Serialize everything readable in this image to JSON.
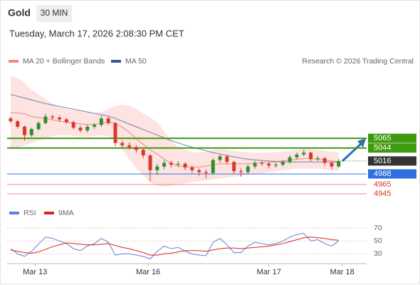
{
  "header": {
    "title": "Gold",
    "interval": "30 MIN",
    "datetime": "Tuesday, March 17, 2026 2:08:30 PM CET",
    "credit": "Research © 2026 Trading Central"
  },
  "chart_data": [
    {
      "type": "candlestick",
      "x": [
        0,
        1,
        2,
        3,
        4,
        5,
        6,
        7,
        8,
        9,
        10,
        11,
        12,
        13,
        14,
        15,
        16,
        17,
        18,
        19,
        20,
        21,
        22,
        23,
        24,
        25,
        26,
        27,
        28,
        29,
        30,
        31,
        32,
        33,
        34,
        35,
        36,
        37,
        38,
        39,
        40,
        41,
        42,
        43,
        44,
        45,
        46,
        47
      ],
      "xlim": [
        -0.5,
        51
      ],
      "ylim": [
        4925,
        5210
      ],
      "up_color": "#2f8f2f",
      "down_color": "#d9382b",
      "open": [
        5108,
        5102,
        5090,
        5072,
        5085,
        5098,
        5112,
        5110,
        5106,
        5100,
        5088,
        5082,
        5090,
        5094,
        5108,
        5098,
        5055,
        5050,
        5046,
        5040,
        5028,
        4996,
        5004,
        5012,
        5008,
        5010,
        5002,
        4996,
        4992,
        4990,
        5018,
        5026,
        5014,
        4994,
        4992,
        5004,
        5012,
        5010,
        5006,
        5008,
        5014,
        5024,
        5030,
        5034,
        5020,
        5022,
        5012,
        5004
      ],
      "high": [
        5112,
        5105,
        5093,
        5088,
        5102,
        5118,
        5116,
        5114,
        5109,
        5103,
        5092,
        5094,
        5098,
        5114,
        5112,
        5100,
        5060,
        5056,
        5050,
        5044,
        5031,
        5010,
        5018,
        5016,
        5015,
        5013,
        5006,
        5000,
        4998,
        5022,
        5030,
        5029,
        5016,
        5000,
        5008,
        5016,
        5016,
        5014,
        5012,
        5018,
        5028,
        5034,
        5040,
        5036,
        5027,
        5025,
        5015,
        5020
      ],
      "low": [
        5098,
        5086,
        5060,
        5068,
        5082,
        5095,
        5105,
        5101,
        5096,
        5084,
        5078,
        5078,
        5086,
        5090,
        5094,
        5048,
        5044,
        5041,
        5034,
        5022,
        4972,
        4986,
        4998,
        5002,
        5003,
        4996,
        4990,
        4984,
        4978,
        4986,
        5012,
        5008,
        4988,
        4982,
        4988,
        4999,
        5005,
        5000,
        5002,
        5004,
        5010,
        5020,
        5026,
        5015,
        5016,
        5006,
        4998,
        5001
      ],
      "close": [
        5102,
        5090,
        5072,
        5085,
        5098,
        5112,
        5110,
        5106,
        5100,
        5088,
        5082,
        5090,
        5094,
        5108,
        5098,
        5055,
        5050,
        5046,
        5040,
        5028,
        4996,
        5004,
        5012,
        5008,
        5010,
        5002,
        4996,
        4992,
        4990,
        5018,
        5026,
        5014,
        4994,
        4992,
        5004,
        5012,
        5010,
        5006,
        5008,
        5014,
        5024,
        5030,
        5034,
        5020,
        5022,
        5012,
        5004,
        5016
      ],
      "bands": {
        "name": "MA 20 + Bollinger Bands",
        "color": "#f4877f",
        "fill": "#fde3e1",
        "upper": [
          5200,
          5195,
          5185,
          5170,
          5160,
          5150,
          5140,
          5132,
          5128,
          5126,
          5124,
          5122,
          5120,
          5122,
          5128,
          5135,
          5138,
          5135,
          5128,
          5118,
          5110,
          5100,
          5080,
          5060,
          5045,
          5040,
          5036,
          5034,
          5036,
          5040,
          5042,
          5040,
          5038,
          5036,
          5035,
          5034,
          5034,
          5034,
          5035,
          5036,
          5038,
          5040,
          5042,
          5042,
          5040,
          5038,
          5036,
          5034
        ],
        "middle": [
          5120,
          5120,
          5118,
          5112,
          5110,
          5108,
          5105,
          5102,
          5100,
          5098,
          5096,
          5095,
          5095,
          5097,
          5099,
          5098,
          5089,
          5078,
          5064,
          5052,
          5040,
          5031,
          5020,
          5011,
          5005,
          5004,
          5003,
          5003,
          5005,
          5008,
          5010,
          5010,
          5010,
          5010,
          5010,
          5011,
          5012,
          5013,
          5014,
          5016,
          5018,
          5020,
          5021,
          5021,
          5020,
          5018,
          5016,
          5014
        ],
        "lower": [
          5040,
          5045,
          5050,
          5055,
          5060,
          5065,
          5070,
          5072,
          5072,
          5070,
          5068,
          5068,
          5070,
          5072,
          5070,
          5060,
          5040,
          5020,
          5000,
          4985,
          4970,
          4962,
          4960,
          4962,
          4965,
          4968,
          4970,
          4972,
          4974,
          4976,
          4978,
          4980,
          4982,
          4984,
          4986,
          4988,
          4990,
          4992,
          4994,
          4996,
          4998,
          5000,
          5000,
          5000,
          5000,
          4998,
          4996,
          4994
        ]
      },
      "series": [
        {
          "name": "MA 50",
          "color": "#3b5998",
          "values": [
            5160,
            5156,
            5152,
            5148,
            5144,
            5140,
            5137,
            5134,
            5131,
            5128,
            5125,
            5122,
            5119,
            5116,
            5113,
            5108,
            5102,
            5096,
            5090,
            5084,
            5078,
            5072,
            5066,
            5060,
            5055,
            5050,
            5046,
            5042,
            5038,
            5034,
            5031,
            5028,
            5025,
            5022,
            5020,
            5018,
            5017,
            5016,
            5015,
            5014,
            5014,
            5014,
            5014,
            5014,
            5014,
            5014,
            5014,
            5014
          ]
        }
      ],
      "levels": [
        {
          "value": 5065,
          "color": "#3f9a10",
          "label_fill": "#3f9a10"
        },
        {
          "value": 5044,
          "color": "#3f9a10",
          "label_fill": "#3f9a10"
        },
        {
          "value": 5016,
          "color": "#555555",
          "label_fill": "#333333",
          "line": "dotted"
        },
        {
          "value": 4988,
          "color": "#2f6fe0",
          "label_fill": "#2f6fe0"
        },
        {
          "value": 4965,
          "color": "#f08a8a"
        },
        {
          "value": 4945,
          "color": "#f08a8a"
        }
      ]
    },
    {
      "type": "line",
      "x": [
        0,
        1,
        2,
        3,
        4,
        5,
        6,
        7,
        8,
        9,
        10,
        11,
        12,
        13,
        14,
        15,
        16,
        17,
        18,
        19,
        20,
        21,
        22,
        23,
        24,
        25,
        26,
        27,
        28,
        29,
        30,
        31,
        32,
        33,
        34,
        35,
        36,
        37,
        38,
        39,
        40,
        41,
        42,
        43,
        44,
        45,
        46,
        47
      ],
      "xlim": [
        -0.5,
        51
      ],
      "ylim": [
        17,
        79
      ],
      "yticks": [
        70,
        50,
        30
      ],
      "xticks": [
        {
          "value": 3.5,
          "label": "Mar 13"
        },
        {
          "value": 19.7,
          "label": "Mar 16"
        },
        {
          "value": 37,
          "label": "Mar 17"
        },
        {
          "value": 47.5,
          "label": "Mar 18"
        }
      ],
      "series": [
        {
          "name": "RSI",
          "color": "#5b80d8",
          "values": [
            38,
            30,
            26,
            34,
            45,
            56,
            54,
            50,
            46,
            38,
            35,
            42,
            46,
            54,
            48,
            28,
            30,
            30,
            28,
            26,
            22,
            34,
            42,
            38,
            40,
            34,
            30,
            28,
            27,
            48,
            54,
            44,
            32,
            32,
            42,
            48,
            46,
            44,
            46,
            50,
            56,
            60,
            62,
            50,
            52,
            46,
            42,
            50
          ]
        },
        {
          "name": "9MA",
          "color": "#e0201b",
          "values": [
            36,
            34,
            32,
            31,
            33,
            37,
            41,
            44,
            47,
            46,
            45,
            44,
            44,
            45,
            46,
            43,
            40,
            38,
            35,
            32,
            28,
            28,
            30,
            31,
            33,
            35,
            35,
            35,
            34,
            36,
            38,
            39,
            39,
            38,
            39,
            40,
            41,
            42,
            44,
            46,
            49,
            52,
            55,
            56,
            55,
            54,
            52,
            51
          ]
        }
      ]
    }
  ]
}
